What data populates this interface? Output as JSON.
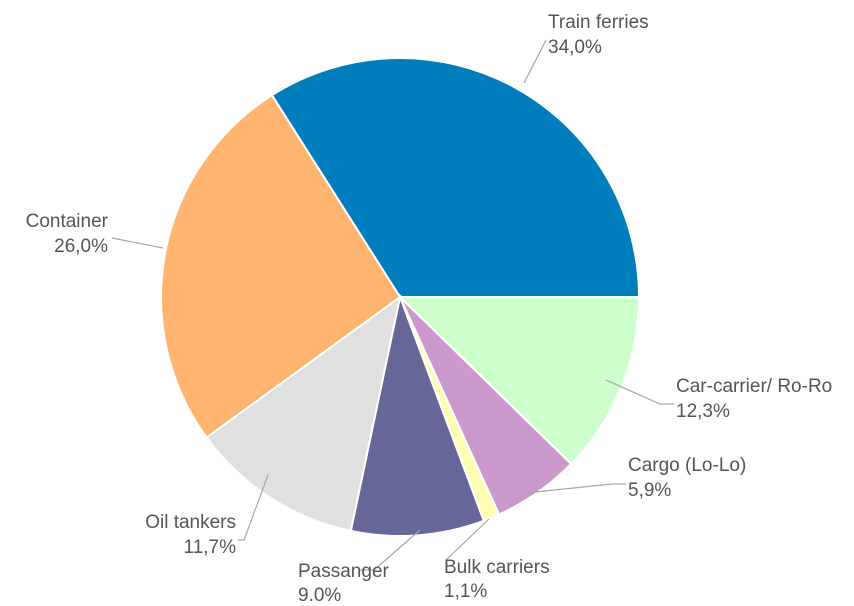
{
  "chart_data": {
    "type": "pie",
    "title": "",
    "slices": [
      {
        "name": "Train ferries",
        "value": 34.0,
        "label": "34,0%",
        "color": "#007DBD"
      },
      {
        "name": "Car-carrier/ Ro-Ro",
        "value": 12.3,
        "label": "12,3%",
        "color": "#CCFFCC"
      },
      {
        "name": "Cargo (Lo-Lo)",
        "value": 5.9,
        "label": "5,9%",
        "color": "#CC99CC"
      },
      {
        "name": "Bulk carriers",
        "value": 1.1,
        "label": "1,1%",
        "color": "#FFFFB3"
      },
      {
        "name": "Passanger",
        "value": 9.0,
        "label": "9.0%",
        "color": "#666699"
      },
      {
        "name": "Oil tankers",
        "value": 11.7,
        "label": "11,7%",
        "color": "#E0E0E0"
      },
      {
        "name": "Container",
        "value": 26.0,
        "label": "26,0%",
        "color": "#FFB570"
      }
    ],
    "legend": "none",
    "data_labels": "outside with leader lines"
  }
}
